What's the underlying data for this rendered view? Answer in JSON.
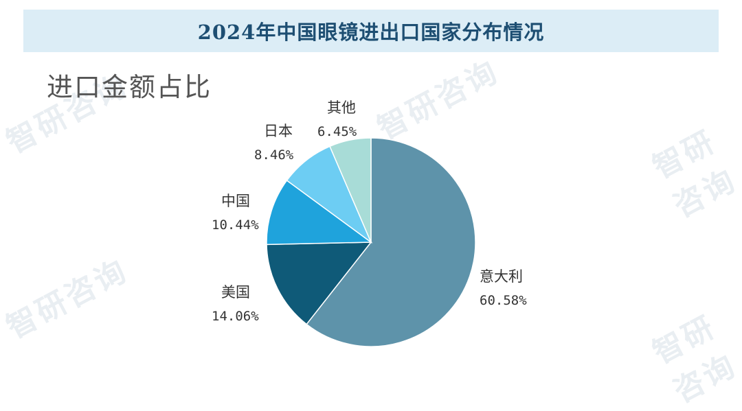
{
  "header": {
    "title": "2024年中国眼镜进出口国家分布情况"
  },
  "section": {
    "subtitle": "进口金额占比"
  },
  "watermark": {
    "text": "智研咨询"
  },
  "chart_data": {
    "type": "pie",
    "title": "2024年中国眼镜进出口国家分布情况",
    "subtitle": "进口金额占比",
    "unit": "%",
    "slices": [
      {
        "label": "意大利",
        "value": 60.58,
        "display": "60.58%",
        "color": "#5e93aa"
      },
      {
        "label": "美国",
        "value": 14.06,
        "display": "14.06%",
        "color": "#0f5a78"
      },
      {
        "label": "中国",
        "value": 10.44,
        "display": "10.44%",
        "color": "#1fa3dc"
      },
      {
        "label": "日本",
        "value": 8.46,
        "display": "8.46%",
        "color": "#6dcdf3"
      },
      {
        "label": "其他",
        "value": 6.45,
        "display": "6.45%",
        "color": "#a8dcd7"
      }
    ],
    "start_angle": "12 o'clock",
    "direction": "clockwise",
    "legend": "none"
  }
}
